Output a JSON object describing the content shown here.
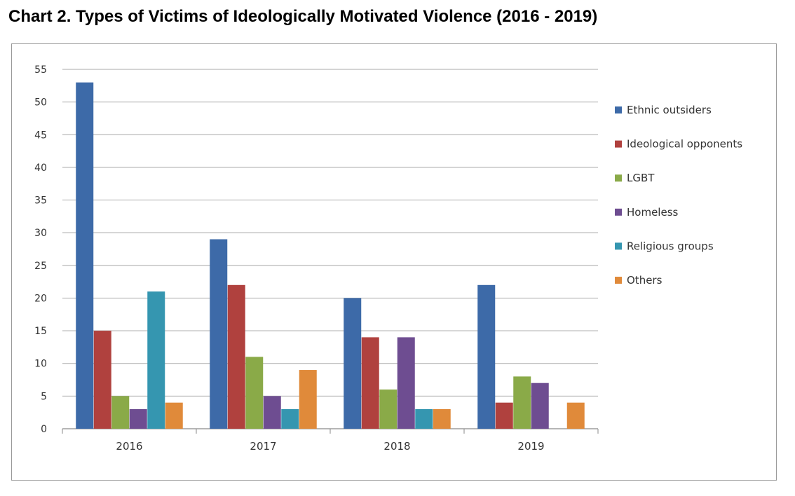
{
  "title": "Chart 2. Types of Victims of Ideologically Motivated Violence (2016 - 2019)",
  "chart_data": {
    "type": "bar",
    "categories": [
      "2016",
      "2017",
      "2018",
      "2019"
    ],
    "series": [
      {
        "name": "Ethnic outsiders",
        "color": "#3d6aa8",
        "values": [
          53,
          29,
          20,
          22
        ]
      },
      {
        "name": "Ideological opponents",
        "color": "#b0413e",
        "values": [
          15,
          22,
          14,
          4
        ]
      },
      {
        "name": "LGBT",
        "color": "#8aaa48",
        "values": [
          5,
          11,
          6,
          8
        ]
      },
      {
        "name": "Homeless",
        "color": "#6e4d91",
        "values": [
          3,
          5,
          14,
          7
        ]
      },
      {
        "name": "Religious groups",
        "color": "#3596b0",
        "values": [
          21,
          3,
          3,
          0
        ]
      },
      {
        "name": "Others",
        "color": "#e08a3a",
        "values": [
          4,
          9,
          3,
          4
        ]
      }
    ],
    "ylim": [
      0,
      55
    ],
    "yticks": [
      0,
      5,
      10,
      15,
      20,
      25,
      30,
      35,
      40,
      45,
      50,
      55
    ],
    "grid": true,
    "legend": "right"
  }
}
